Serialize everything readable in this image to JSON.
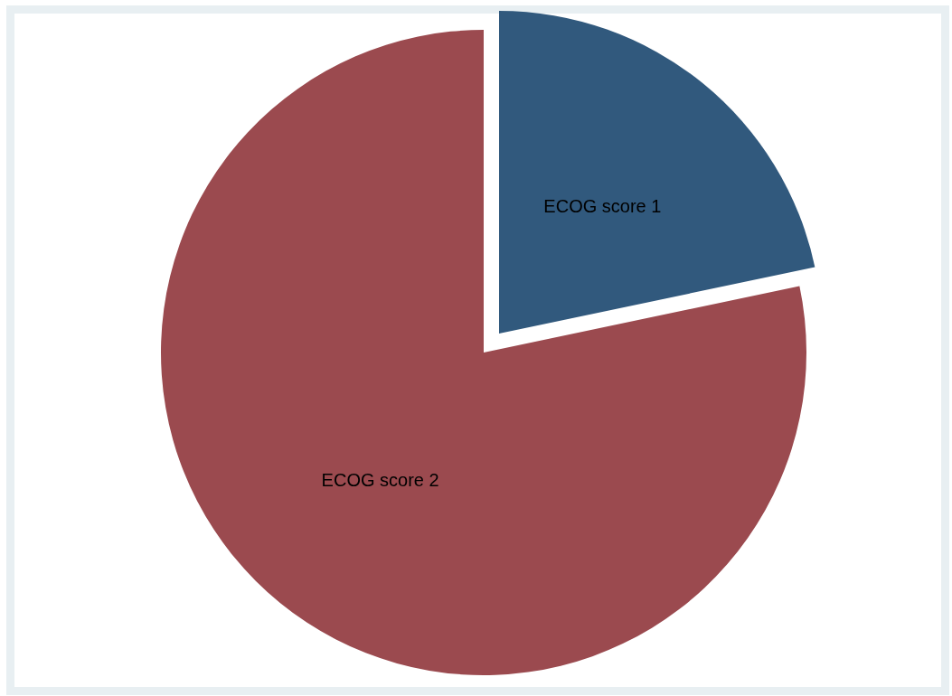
{
  "chart_data": {
    "type": "pie",
    "categories": [
      "ECOG score 1",
      "ECOG score 2"
    ],
    "values": [
      21.7,
      78.3
    ],
    "colors": [
      "#31597d",
      "#9b4a4f"
    ]
  }
}
